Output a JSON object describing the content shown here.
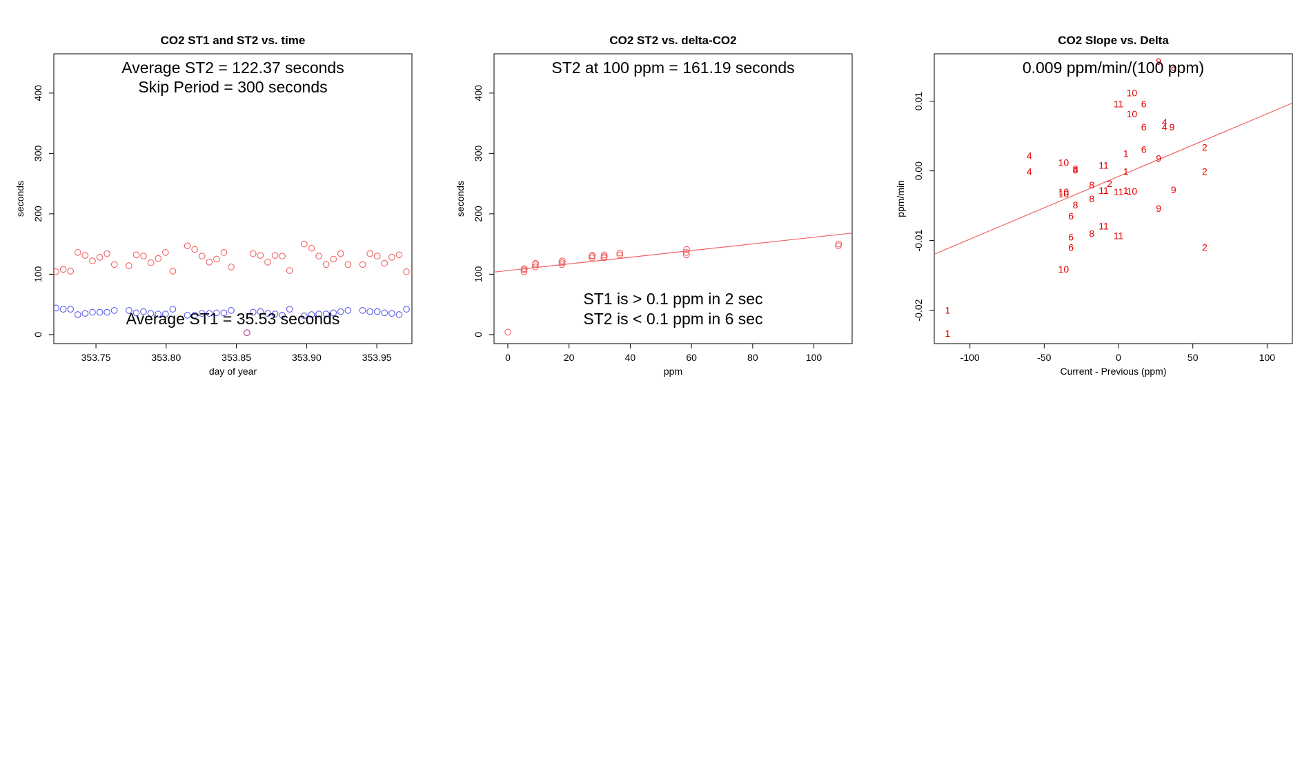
{
  "colors": {
    "st2": "#f06060",
    "st1": "#5b5bf0",
    "overlap": "#b0308c",
    "line": "#f06060",
    "label": "#e80000"
  },
  "chart_data": [
    {
      "type": "scatter",
      "title": "CO2 ST1 and ST2 vs. time",
      "xlabel": "day of year",
      "ylabel": "seconds",
      "xlim": [
        353.72,
        353.975
      ],
      "ylim": [
        -15,
        465
      ],
      "xticks": [
        353.75,
        353.8,
        353.85,
        353.9,
        353.95
      ],
      "xtick_labels": [
        "353.75",
        "353.80",
        "353.85",
        "353.90",
        "353.95"
      ],
      "yticks": [
        0,
        100,
        200,
        300,
        400
      ],
      "ytick_labels": [
        "0",
        "100",
        "200",
        "300",
        "400"
      ],
      "annotations": [
        "Average ST2 =  122.37  seconds",
        "Skip Period =  300  seconds",
        "Average ST1 =  35.53  seconds"
      ],
      "series": [
        {
          "name": "ST2",
          "x": [
            353.7215,
            353.7267,
            353.7319,
            353.7371,
            353.7423,
            353.7475,
            353.7527,
            353.7579,
            353.7631,
            353.7735,
            353.7787,
            353.7839,
            353.7891,
            353.7943,
            353.7995,
            353.8047,
            353.8151,
            353.8203,
            353.8255,
            353.8307,
            353.8359,
            353.8411,
            353.8463,
            353.8619,
            353.8671,
            353.8723,
            353.8775,
            353.8827,
            353.8879,
            353.8983,
            353.9035,
            353.9087,
            353.9139,
            353.9191,
            353.9243,
            353.9295,
            353.9399,
            353.9451,
            353.9503,
            353.9555,
            353.9607,
            353.9659,
            353.9711
          ],
          "y": [
            104,
            108,
            105,
            136,
            131,
            122,
            128,
            134,
            116,
            114,
            132,
            130,
            119,
            126,
            136,
            105,
            147,
            141,
            130,
            120,
            125,
            136,
            112,
            134,
            131,
            120,
            131,
            130,
            106,
            150,
            143,
            130,
            116,
            125,
            134,
            116,
            116,
            134,
            130,
            118,
            128,
            132,
            104
          ]
        },
        {
          "name": "ST1",
          "x": [
            353.7215,
            353.7267,
            353.7319,
            353.7371,
            353.7423,
            353.7475,
            353.7527,
            353.7579,
            353.7631,
            353.7735,
            353.7787,
            353.7839,
            353.7891,
            353.7943,
            353.7995,
            353.8047,
            353.8151,
            353.8203,
            353.8255,
            353.8307,
            353.8359,
            353.8411,
            353.8463,
            353.8619,
            353.8671,
            353.8723,
            353.8775,
            353.8827,
            353.8879,
            353.8983,
            353.9035,
            353.9087,
            353.9139,
            353.9191,
            353.9243,
            353.9295,
            353.9399,
            353.9451,
            353.9503,
            353.9555,
            353.9607,
            353.9659,
            353.9711
          ],
          "y": [
            44,
            42,
            42,
            33,
            35,
            37,
            37,
            37,
            40,
            40,
            36,
            38,
            35,
            34,
            34,
            42,
            32,
            32,
            35,
            35,
            36,
            36,
            40,
            37,
            38,
            35,
            34,
            32,
            42,
            31,
            33,
            34,
            34,
            36,
            38,
            40,
            40,
            38,
            38,
            36,
            35,
            33,
            42
          ]
        },
        {
          "name": "overlap",
          "x": [
            353.8575
          ],
          "y": [
            3
          ]
        }
      ]
    },
    {
      "type": "scatter",
      "title": "CO2 ST2 vs. delta-CO2",
      "xlabel": "ppm",
      "ylabel": "seconds",
      "xlim": [
        -4.5,
        112.5
      ],
      "ylim": [
        -15,
        465
      ],
      "xticks": [
        0,
        20,
        40,
        60,
        80,
        100
      ],
      "xtick_labels": [
        "0",
        "20",
        "40",
        "60",
        "80",
        "100"
      ],
      "yticks": [
        0,
        100,
        200,
        300,
        400
      ],
      "ytick_labels": [
        "0",
        "100",
        "200",
        "300",
        "400"
      ],
      "annotations": [
        "ST2 at 100 ppm =  161.19  seconds",
        "ST1 is > 0.1 ppm in 2 sec",
        "ST2 is < 0.1 ppm in 6 sec"
      ],
      "fit_line": {
        "intercept": 106,
        "slope": 0.552
      },
      "points": {
        "x": [
          0,
          5.3,
          5.3,
          5.4,
          9,
          9,
          9.1,
          17.7,
          17.7,
          17.8,
          27.5,
          27.5,
          27.6,
          31.4,
          31.5,
          31.5,
          36.6,
          36.6,
          58.3,
          58.3,
          58.4,
          108,
          108.1
        ],
        "y": [
          4,
          104,
          107,
          109,
          112,
          116,
          118,
          116,
          119,
          122,
          127,
          130,
          131,
          127,
          129,
          132,
          132,
          135,
          132,
          136,
          141,
          147,
          150
        ]
      }
    },
    {
      "type": "scatter",
      "title": "CO2 Slope vs. Delta",
      "xlabel": "Current - Previous (ppm)",
      "ylabel": "ppm/min",
      "xlim": [
        -124,
        117
      ],
      "ylim": [
        -0.0248,
        0.0168
      ],
      "xticks": [
        -100,
        -50,
        0,
        50,
        100
      ],
      "xtick_labels": [
        "-100",
        "-50",
        "0",
        "50",
        "100"
      ],
      "yticks": [
        -0.02,
        -0.01,
        0.0,
        0.01
      ],
      "ytick_labels": [
        "-0.02",
        "-0.01",
        "0.00",
        "0.01"
      ],
      "annotations": [
        "0.009  ppm/min/(100 ppm)"
      ],
      "fit_line": {
        "intercept": -0.0008,
        "slope": 9e-05
      },
      "points": {
        "labels": [
          "9",
          "9",
          "10",
          "11",
          "6",
          "10",
          "4",
          "4",
          "9",
          "6",
          "6",
          "9",
          "2",
          "1",
          "4",
          "10",
          "11",
          "8",
          "8",
          "1",
          "4",
          "2",
          "10",
          "2",
          "1",
          "11",
          "11",
          "10",
          "10",
          "8",
          "8",
          "9",
          "8",
          "9",
          "6",
          "11",
          "8",
          "6",
          "11",
          "6",
          "2",
          "10",
          "1",
          "1"
        ],
        "x": [
          27,
          37,
          9,
          0,
          17,
          9,
          31,
          31,
          36,
          17,
          17,
          27,
          58,
          5,
          -60,
          -37,
          -10,
          -29,
          -29,
          5,
          -60,
          -6,
          -37,
          58,
          5,
          -10,
          0,
          9,
          -37,
          -18,
          -18,
          37,
          -29,
          27,
          -32,
          -10,
          -18,
          -32,
          0,
          -32,
          58,
          -37,
          -115,
          -115
        ],
        "y": [
          0.0157,
          0.0145,
          0.0112,
          0.0096,
          0.0096,
          0.0082,
          0.007,
          0.0063,
          0.0063,
          0.0063,
          0.0031,
          0.0018,
          0.0034,
          0.0025,
          0.0022,
          0.0012,
          0.0008,
          0.0003,
          0.0001,
          -0.0001,
          -0.0001,
          -0.0018,
          -0.003,
          -0.0001,
          -0.0028,
          -0.0028,
          -0.003,
          -0.0029,
          -0.0033,
          -0.002,
          -0.004,
          -0.0027,
          -0.0049,
          -0.0054,
          -0.0065,
          -0.0079,
          -0.009,
          -0.0095,
          -0.0093,
          -0.011,
          -0.011,
          -0.0141,
          -0.02,
          -0.0233
        ]
      }
    }
  ]
}
